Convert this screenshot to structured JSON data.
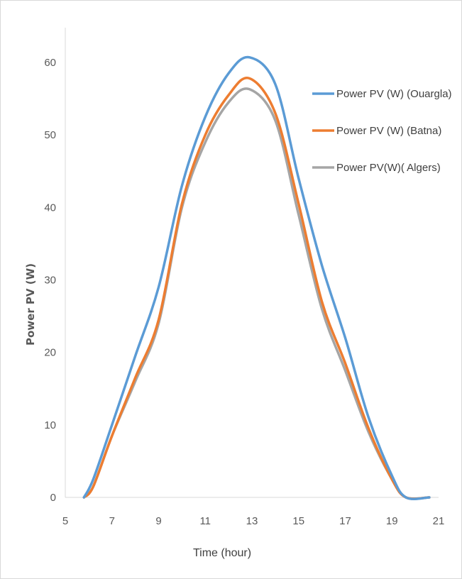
{
  "chart_data": {
    "type": "line",
    "title": "",
    "xlabel": "Time (hour)",
    "ylabel": "Power PV (W)",
    "xlim": [
      5,
      21
    ],
    "ylim": [
      0,
      65
    ],
    "x_ticks": [
      5,
      7,
      9,
      11,
      13,
      15,
      17,
      19,
      21
    ],
    "y_ticks": [
      0,
      10,
      20,
      30,
      40,
      50,
      60
    ],
    "grid": false,
    "legend_position": "top-right",
    "series": [
      {
        "name": "Power PV (W) (Ouargla)",
        "color": "#5b9bd5",
        "points": [
          [
            5.8,
            0
          ],
          [
            6.2,
            2.5
          ],
          [
            7,
            10
          ],
          [
            8,
            19.5
          ],
          [
            9,
            29
          ],
          [
            10,
            43
          ],
          [
            11,
            52.5
          ],
          [
            12,
            58.5
          ],
          [
            12.9,
            60.7
          ],
          [
            14,
            57
          ],
          [
            15,
            44
          ],
          [
            16,
            32
          ],
          [
            17,
            22
          ],
          [
            18,
            11
          ],
          [
            19,
            3
          ],
          [
            19.6,
            0
          ],
          [
            20.6,
            0
          ]
        ]
      },
      {
        "name": "Power PV (W) (Batna)",
        "color": "#ed7d31",
        "points": [
          [
            5.8,
            0
          ],
          [
            6.2,
            1.5
          ],
          [
            7,
            8.5
          ],
          [
            8,
            16.5
          ],
          [
            9,
            24.5
          ],
          [
            10,
            40.5
          ],
          [
            11,
            50
          ],
          [
            12,
            55.5
          ],
          [
            12.9,
            57.8
          ],
          [
            14,
            53
          ],
          [
            15,
            40.5
          ],
          [
            16,
            27
          ],
          [
            17,
            18.5
          ],
          [
            18,
            9.5
          ],
          [
            19,
            2.5
          ],
          [
            19.6,
            0
          ],
          [
            20.6,
            0
          ]
        ]
      },
      {
        "name": "Power PV(W)( Algers)",
        "color": "#a5a5a5",
        "points": [
          [
            5.8,
            0
          ],
          [
            6.2,
            1.5
          ],
          [
            7,
            8.5
          ],
          [
            8,
            16
          ],
          [
            9,
            24
          ],
          [
            10,
            40
          ],
          [
            11,
            49
          ],
          [
            12,
            54.5
          ],
          [
            12.9,
            56.3
          ],
          [
            14,
            52
          ],
          [
            15,
            39
          ],
          [
            16,
            26
          ],
          [
            17,
            17.5
          ],
          [
            18,
            9
          ],
          [
            19,
            2.5
          ],
          [
            19.6,
            0
          ],
          [
            20.6,
            0
          ]
        ]
      }
    ]
  }
}
